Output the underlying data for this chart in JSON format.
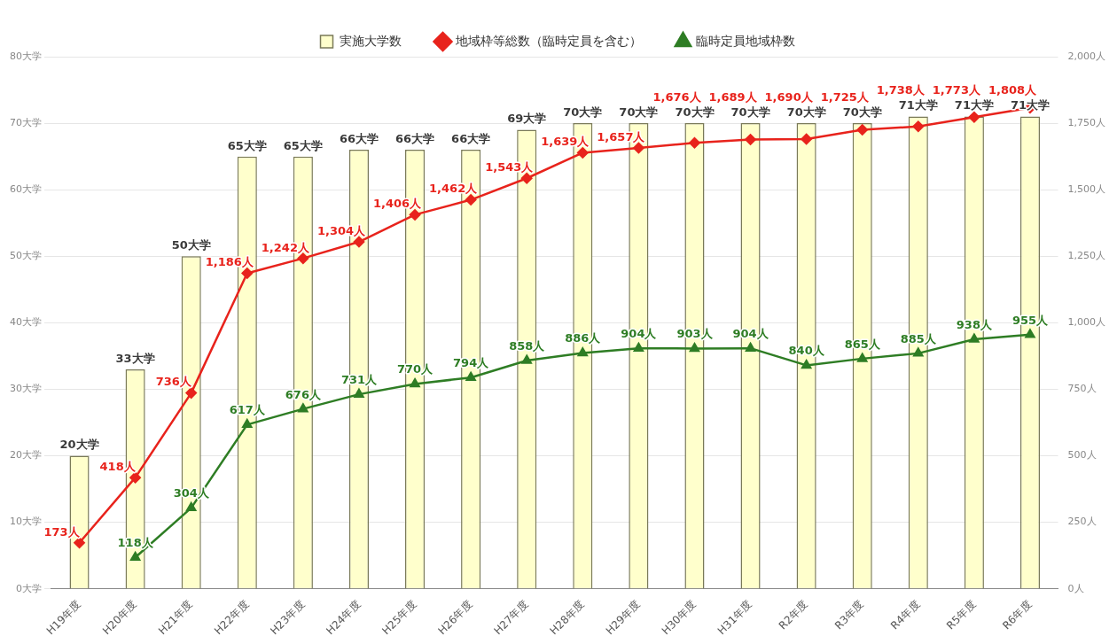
{
  "chart_data": {
    "type": "bar",
    "categories": [
      "H19年度",
      "H20年度",
      "H21年度",
      "H22年度",
      "H23年度",
      "H24年度",
      "H25年度",
      "H26年度",
      "H27年度",
      "H28年度",
      "H29年度",
      "H30年度",
      "H31年度",
      "R2年度",
      "R3年度",
      "R4年度",
      "R5年度",
      "R6年度"
    ],
    "series": [
      {
        "name": "実施大学数",
        "color": "#ffffcc",
        "values": [
          20,
          33,
          50,
          65,
          65,
          66,
          66,
          66,
          69,
          70,
          70,
          70,
          70,
          70,
          70,
          71,
          71,
          71
        ],
        "value_labels": [
          "20大学",
          "33大学",
          "50大学",
          "65大学",
          "65大学",
          "66大学",
          "66大学",
          "66大学",
          "69大学",
          "70大学",
          "70大学",
          "70大学",
          "70大学",
          "70大学",
          "70大学",
          "71大学",
          "71大学",
          "71大学"
        ]
      },
      {
        "name": "地域枠等総数（臨時定員を含む）",
        "type": "line",
        "axis": "y2",
        "color": "#e8231c",
        "marker": "diamond",
        "values": [
          173,
          418,
          736,
          1186,
          1242,
          1304,
          1406,
          1462,
          1543,
          1639,
          1657,
          1676,
          1689,
          1690,
          1725,
          1738,
          1773,
          1808
        ],
        "value_labels": [
          "173人",
          "418人",
          "736人",
          "1,186人",
          "1,242人",
          "1,304人",
          "1,406人",
          "1,462人",
          "1,543人",
          "1,639人",
          "1,657人",
          "1,676人",
          "1,689人",
          "1,690人",
          "1,725人",
          "1,738人",
          "1,773人",
          "1,808人"
        ]
      },
      {
        "name": "臨時定員地域枠数",
        "type": "line",
        "axis": "y2",
        "color": "#2e7d24",
        "marker": "triangle",
        "values": [
          null,
          118,
          304,
          617,
          676,
          731,
          770,
          794,
          858,
          886,
          904,
          903,
          904,
          840,
          865,
          885,
          938,
          955
        ],
        "value_labels": [
          null,
          "118人",
          "304人",
          "617人",
          "676人",
          "731人",
          "770人",
          "794人",
          "858人",
          "886人",
          "904人",
          "903人",
          "904人",
          "840人",
          "865人",
          "885人",
          "938人",
          "955人"
        ]
      }
    ],
    "ylim": [
      0,
      80
    ],
    "yticks": [
      {
        "value": 0,
        "label": "0大学"
      },
      {
        "value": 10,
        "label": "10大学"
      },
      {
        "value": 20,
        "label": "20大学"
      },
      {
        "value": 30,
        "label": "30大学"
      },
      {
        "value": 40,
        "label": "40大学"
      },
      {
        "value": 50,
        "label": "50大学"
      },
      {
        "value": 60,
        "label": "60大学"
      },
      {
        "value": 70,
        "label": "70大学"
      },
      {
        "value": 80,
        "label": "80大学"
      }
    ],
    "y2lim": [
      0,
      2000
    ],
    "y2ticks": [
      {
        "value": 0,
        "label": "0人"
      },
      {
        "value": 250,
        "label": "250人"
      },
      {
        "value": 500,
        "label": "500人"
      },
      {
        "value": 750,
        "label": "750人"
      },
      {
        "value": 1000,
        "label": "1,000人"
      },
      {
        "value": 1250,
        "label": "1,250人"
      },
      {
        "value": 1500,
        "label": "1,500人"
      },
      {
        "value": 1750,
        "label": "1,750人"
      },
      {
        "value": 2000,
        "label": "2,000人"
      }
    ],
    "grid": "y",
    "legend": "top",
    "line_style": "solid"
  }
}
